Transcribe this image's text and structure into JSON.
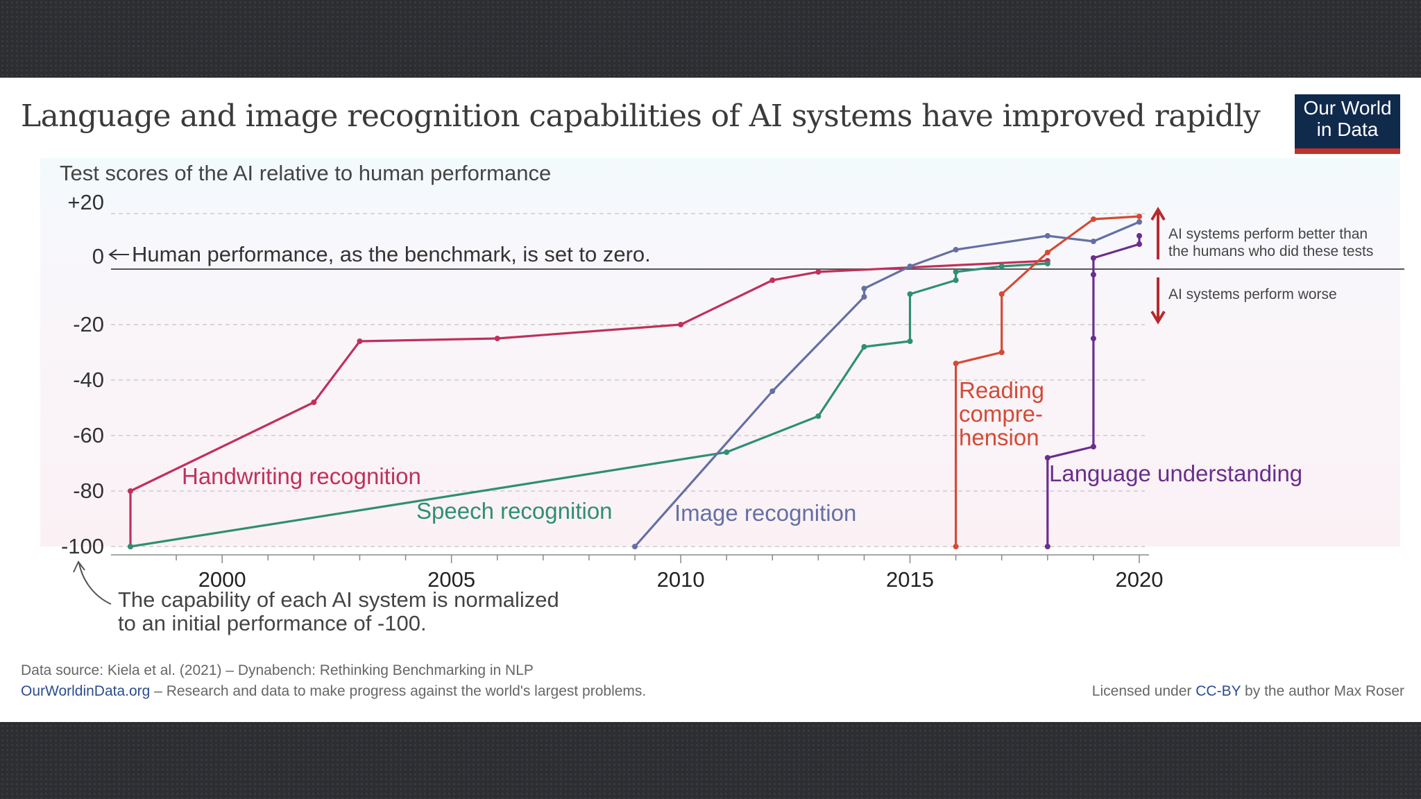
{
  "title": "Language and image recognition capabilities of AI systems have improved rapidly",
  "logo": {
    "line1": "Our World",
    "line2": "in Data"
  },
  "chart_data": {
    "type": "line",
    "ylabel": "Test scores of the AI relative to human performance",
    "ylim": [
      -100,
      20
    ],
    "xlim": [
      1998,
      2020
    ],
    "x_ticks": [
      2000,
      2005,
      2010,
      2015,
      2020
    ],
    "y_ticks": [
      {
        "value": 20,
        "label": "+20"
      },
      {
        "value": 0,
        "label": "0"
      },
      {
        "value": -20,
        "label": "-20"
      },
      {
        "value": -40,
        "label": "-40"
      },
      {
        "value": -60,
        "label": "-60"
      },
      {
        "value": -80,
        "label": "-80"
      },
      {
        "value": -100,
        "label": "-100"
      }
    ],
    "baseline_note": "Human performance, as the benchmark, is set to zero.",
    "start_note_line1": "The capability of each AI system is normalized",
    "start_note_line2": "to an initial performance of -100.",
    "legend_better": [
      "AI systems perform better than",
      "the humans who did these tests"
    ],
    "legend_worse": "AI systems perform worse",
    "series": [
      {
        "name": "Handwriting recognition",
        "color": "#c0305a",
        "points": [
          [
            1998,
            -100
          ],
          [
            1998,
            -80
          ],
          [
            2002,
            -48
          ],
          [
            2003,
            -26
          ],
          [
            2006,
            -25
          ],
          [
            2010,
            -20
          ],
          [
            2012,
            -4
          ],
          [
            2013,
            -1
          ],
          [
            2018,
            3
          ]
        ]
      },
      {
        "name": "Speech recognition",
        "color": "#2e8f72",
        "points": [
          [
            1998,
            -100
          ],
          [
            2011,
            -66
          ],
          [
            2013,
            -53
          ],
          [
            2014,
            -28
          ],
          [
            2015,
            -26
          ],
          [
            2015,
            -9
          ],
          [
            2016,
            -4
          ],
          [
            2016,
            -1
          ],
          [
            2017,
            1
          ],
          [
            2018,
            2
          ]
        ]
      },
      {
        "name": "Image recognition",
        "color": "#6470a3",
        "points": [
          [
            2009,
            -100
          ],
          [
            2012,
            -44
          ],
          [
            2014,
            -10
          ],
          [
            2014,
            -7
          ],
          [
            2015,
            1
          ],
          [
            2016,
            7
          ],
          [
            2018,
            12
          ],
          [
            2019,
            10
          ],
          [
            2020,
            17
          ]
        ]
      },
      {
        "name": "Reading compre-hension",
        "label_lines": [
          "Reading",
          "compre-",
          "hension"
        ],
        "color": "#d44a35",
        "points": [
          [
            2016,
            -100
          ],
          [
            2016,
            -34
          ],
          [
            2017,
            -30
          ],
          [
            2017,
            -9
          ],
          [
            2018,
            6
          ],
          [
            2019,
            18
          ],
          [
            2020,
            19
          ]
        ]
      },
      {
        "name": "Language understanding",
        "color": "#6a2e8c",
        "points": [
          [
            2018,
            -100
          ],
          [
            2018,
            -68
          ],
          [
            2019,
            -64
          ],
          [
            2019,
            -25
          ],
          [
            2019,
            -2
          ],
          [
            2019,
            4
          ],
          [
            2020,
            9
          ],
          [
            2020,
            12
          ]
        ]
      }
    ]
  },
  "footer": {
    "source": "Data source: Kiela et al. (2021) – Dynabench: Rethinking Benchmarking in NLP",
    "site_link": "OurWorldinData.org",
    "site_text": " – Research and data to make progress against the world's largest problems.",
    "license_prefix": "Licensed under ",
    "license_link": "CC-BY",
    "license_suffix": " by the author Max Roser"
  }
}
